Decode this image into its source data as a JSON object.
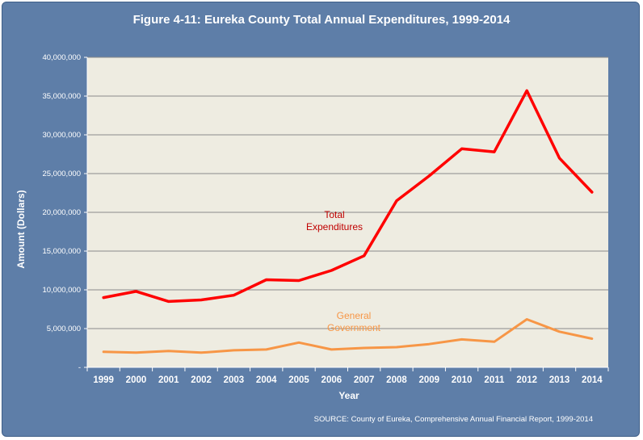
{
  "chart_data": {
    "type": "line",
    "title": "Figure 4-11: Eureka County Total Annual Expenditures, 1999-2014",
    "xlabel": "Year",
    "ylabel": "Amount (Dollars)",
    "x": [
      "1999",
      "2000",
      "2001",
      "2002",
      "2003",
      "2004",
      "2005",
      "2006",
      "2007",
      "2008",
      "2009",
      "2010",
      "2011",
      "2012",
      "2013",
      "2014"
    ],
    "ylim": [
      0,
      40000000
    ],
    "yticks": [
      0,
      5000000,
      10000000,
      15000000,
      20000000,
      25000000,
      30000000,
      35000000,
      40000000
    ],
    "ytick_labels": [
      "-",
      "5,000,000",
      "10,000,000",
      "15,000,000",
      "20,000,000",
      "25,000,000",
      "30,000,000",
      "35,000,000",
      "40,000,000"
    ],
    "grid": true,
    "series": [
      {
        "name": "Total Expenditures",
        "color": "#ff0000",
        "values": [
          9000000,
          9800000,
          8500000,
          8700000,
          9300000,
          11300000,
          11200000,
          12500000,
          14400000,
          21500000,
          24700000,
          28200000,
          27800000,
          35700000,
          27000000,
          22600000
        ]
      },
      {
        "name": "General Government",
        "color": "#f79646",
        "values": [
          2000000,
          1900000,
          2100000,
          1900000,
          2200000,
          2300000,
          3200000,
          2300000,
          2500000,
          2600000,
          3000000,
          3600000,
          3300000,
          6200000,
          4600000,
          3700000
        ]
      }
    ],
    "annotations": [
      {
        "lines": [
          "Total",
          "Expenditures"
        ],
        "color": "#c00000"
      },
      {
        "lines": [
          "General",
          "Government"
        ],
        "color": "#f79646"
      }
    ],
    "source": "SOURCE: County of Eureka, Comprehensive Annual Financial Report, 1999-2014",
    "plot_background": "#eeece1",
    "frame_background": "#5e7ea8"
  }
}
